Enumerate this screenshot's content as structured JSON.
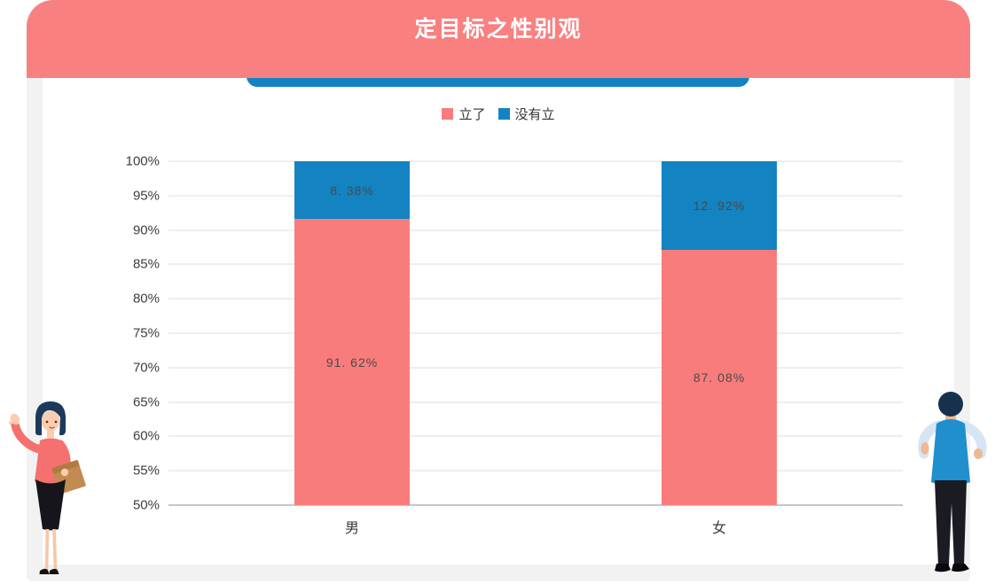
{
  "page": {
    "title": "定目标之性别观"
  },
  "chart_data": {
    "type": "bar",
    "stacked": true,
    "title": "定目标之性别观",
    "categories": [
      "男",
      "女"
    ],
    "series": [
      {
        "name": "立了",
        "color": "#F97C7C",
        "values": [
          91.62,
          87.08
        ],
        "data_labels": [
          "91. 62%",
          "87. 08%"
        ]
      },
      {
        "name": "没有立",
        "color": "#1383C2",
        "values": [
          8.38,
          12.92
        ],
        "data_labels": [
          "8. 38%",
          "12. 92%"
        ]
      }
    ],
    "ylim": [
      50,
      100
    ],
    "yticks": [
      100,
      95,
      90,
      85,
      80,
      75,
      70,
      65,
      60,
      55,
      50
    ],
    "ytick_suffix": "%",
    "grid": true,
    "legend_position": "top-center"
  },
  "colors": {
    "header_bg": "#F98080",
    "tab_bar": "#1383C2",
    "panel_bg": "#F2F2F2",
    "card_bg": "#FFFFFF",
    "gridline": "#DEDEDE",
    "baseline": "#C6C6C6",
    "axis_text": "#3D3D3D",
    "data_label_text": "#4A4A4A",
    "title_text": "#FFFFFF"
  },
  "illustrations": {
    "left": "standing-woman-waving-holding-folder",
    "right": "standing-man-back-view"
  }
}
